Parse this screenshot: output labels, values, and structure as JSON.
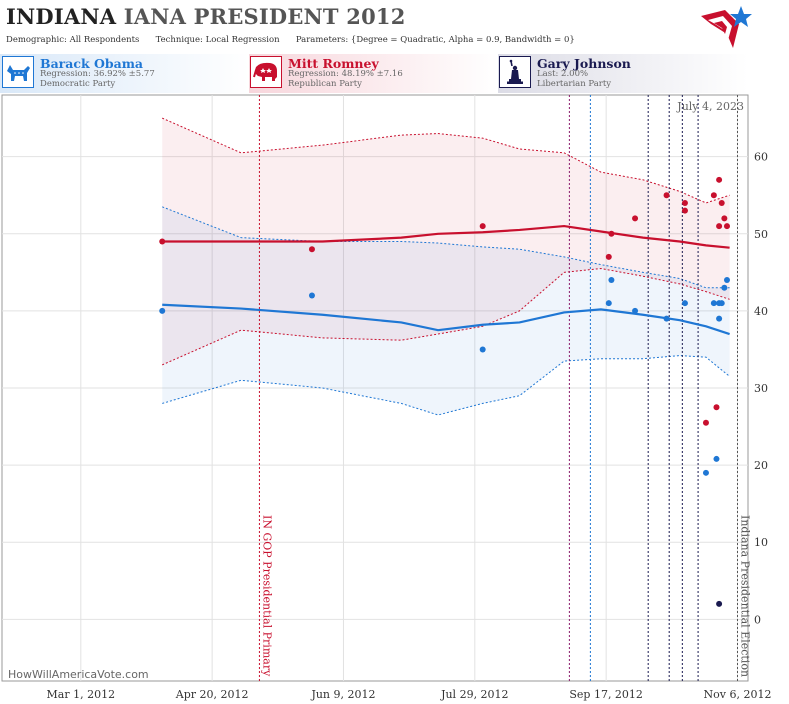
{
  "header": {
    "state": "INDIANA",
    "title_rest": "IANA PRESIDENT 2012",
    "demographic_label": "Demographic:",
    "demographic_value": "All Respondents",
    "technique_label": "Technique:",
    "technique_value": "Local Regression",
    "parameters_label": "Parameters:",
    "parameters_value": "{Degree = Quadratic, Alpha = 0.9, Bandwidth = 0}"
  },
  "candidates": [
    {
      "name": "Barack Obama",
      "line2": "Regression: 36.92% ±5.77",
      "line3": "Democratic Party",
      "color": "#1f77d4",
      "icon": "donkey-icon"
    },
    {
      "name": "Mitt Romney",
      "line2": "Regression: 48.19% ±7.16",
      "line3": "Republican Party",
      "color": "#c8102e",
      "icon": "elephant-icon"
    },
    {
      "name": "Gary Johnson",
      "line2": "Last: 2.00%",
      "line3": "Libertarian Party",
      "color": "#1a1a50",
      "icon": "statue-of-liberty-icon"
    }
  ],
  "watermark": "HowWillAmericaVote.com",
  "chart_data": {
    "type": "scatter",
    "date_label": "July 4, 2023",
    "x_tick_labels": [
      "Mar 1, 2012",
      "Apr 20, 2012",
      "Jun 9, 2012",
      "Jul 29, 2012",
      "Sep 17, 2012",
      "Nov 6, 2012"
    ],
    "x_ticks": [
      "2012-03-01",
      "2012-04-20",
      "2012-06-09",
      "2012-07-29",
      "2012-09-17",
      "2012-11-06"
    ],
    "x_range": [
      "2012-01-31",
      "2012-11-10"
    ],
    "ylim": [
      -8,
      68
    ],
    "y_ticks": [
      0,
      10,
      20,
      30,
      40,
      50,
      60
    ],
    "grid": true,
    "events": [
      {
        "date": "2012-05-08",
        "label": "IN GOP Presidential Primary",
        "color": "#c8102e"
      },
      {
        "date": "2012-11-06",
        "label": "Indiana Presidential Election",
        "color": "#555555"
      }
    ],
    "event_lines": [
      {
        "date": "2012-09-03",
        "color": "#8b1a6b"
      },
      {
        "date": "2012-09-11",
        "color": "#1f77d4"
      },
      {
        "date": "2012-10-03",
        "color": "#1a1a50"
      },
      {
        "date": "2012-10-11",
        "color": "#1a1a50"
      },
      {
        "date": "2012-10-16",
        "color": "#1a1a50"
      },
      {
        "date": "2012-10-22",
        "color": "#1a1a50"
      }
    ],
    "series": [
      {
        "name": "Mitt Romney",
        "color": "#c8102e",
        "points": [
          {
            "x": "2012-04-01",
            "y": 49
          },
          {
            "x": "2012-05-28",
            "y": 48
          },
          {
            "x": "2012-08-01",
            "y": 51
          },
          {
            "x": "2012-09-19",
            "y": 50
          },
          {
            "x": "2012-09-18",
            "y": 47
          },
          {
            "x": "2012-09-28",
            "y": 52
          },
          {
            "x": "2012-10-10",
            "y": 55
          },
          {
            "x": "2012-10-17",
            "y": 54
          },
          {
            "x": "2012-10-17",
            "y": 53
          },
          {
            "x": "2012-10-28",
            "y": 55
          },
          {
            "x": "2012-10-30",
            "y": 57
          },
          {
            "x": "2012-10-31",
            "y": 54
          },
          {
            "x": "2012-10-30",
            "y": 51
          },
          {
            "x": "2012-11-01",
            "y": 52
          },
          {
            "x": "2012-11-02",
            "y": 51
          },
          {
            "x": "2012-10-25",
            "y": 25.5
          },
          {
            "x": "2012-10-29",
            "y": 27.5
          }
        ],
        "trend": [
          {
            "x": "2012-04-01",
            "y": 49,
            "lo": 33,
            "hi": 65
          },
          {
            "x": "2012-05-01",
            "y": 49,
            "lo": 37.5,
            "hi": 60.5
          },
          {
            "x": "2012-06-01",
            "y": 49,
            "lo": 36.5,
            "hi": 61.5
          },
          {
            "x": "2012-07-01",
            "y": 49.5,
            "lo": 36.2,
            "hi": 62.8
          },
          {
            "x": "2012-07-15",
            "y": 50,
            "lo": 37,
            "hi": 63
          },
          {
            "x": "2012-08-01",
            "y": 50.2,
            "lo": 38,
            "hi": 62.4
          },
          {
            "x": "2012-08-15",
            "y": 50.5,
            "lo": 40,
            "hi": 61
          },
          {
            "x": "2012-09-01",
            "y": 51,
            "lo": 45,
            "hi": 60.5
          },
          {
            "x": "2012-09-15",
            "y": 50.3,
            "lo": 45.5,
            "hi": 58
          },
          {
            "x": "2012-10-01",
            "y": 49.5,
            "lo": 44.5,
            "hi": 57
          },
          {
            "x": "2012-10-15",
            "y": 49,
            "lo": 43.5,
            "hi": 55.5
          },
          {
            "x": "2012-10-25",
            "y": 48.5,
            "lo": 42.5,
            "hi": 54
          },
          {
            "x": "2012-11-03",
            "y": 48.2,
            "lo": 41.5,
            "hi": 55
          }
        ]
      },
      {
        "name": "Barack Obama",
        "color": "#1f77d4",
        "points": [
          {
            "x": "2012-04-01",
            "y": 40
          },
          {
            "x": "2012-05-28",
            "y": 42
          },
          {
            "x": "2012-08-01",
            "y": 35
          },
          {
            "x": "2012-09-19",
            "y": 44
          },
          {
            "x": "2012-09-18",
            "y": 41
          },
          {
            "x": "2012-09-28",
            "y": 40
          },
          {
            "x": "2012-10-10",
            "y": 39
          },
          {
            "x": "2012-10-17",
            "y": 41
          },
          {
            "x": "2012-10-28",
            "y": 41
          },
          {
            "x": "2012-10-30",
            "y": 41
          },
          {
            "x": "2012-10-31",
            "y": 41
          },
          {
            "x": "2012-10-30",
            "y": 39
          },
          {
            "x": "2012-11-01",
            "y": 43
          },
          {
            "x": "2012-11-02",
            "y": 44
          },
          {
            "x": "2012-10-25",
            "y": 19
          },
          {
            "x": "2012-10-29",
            "y": 20.8
          }
        ],
        "trend": [
          {
            "x": "2012-04-01",
            "y": 40.8,
            "lo": 28,
            "hi": 53.5
          },
          {
            "x": "2012-05-01",
            "y": 40.3,
            "lo": 31,
            "hi": 49.5
          },
          {
            "x": "2012-06-01",
            "y": 39.5,
            "lo": 30,
            "hi": 49
          },
          {
            "x": "2012-07-01",
            "y": 38.5,
            "lo": 28,
            "hi": 49
          },
          {
            "x": "2012-07-15",
            "y": 37.5,
            "lo": 26.5,
            "hi": 48.8
          },
          {
            "x": "2012-08-01",
            "y": 38.2,
            "lo": 28,
            "hi": 48.3
          },
          {
            "x": "2012-08-15",
            "y": 38.5,
            "lo": 29,
            "hi": 48
          },
          {
            "x": "2012-09-01",
            "y": 39.8,
            "lo": 33.5,
            "hi": 47
          },
          {
            "x": "2012-09-15",
            "y": 40.2,
            "lo": 33.8,
            "hi": 46
          },
          {
            "x": "2012-10-01",
            "y": 39.5,
            "lo": 33.8,
            "hi": 45
          },
          {
            "x": "2012-10-15",
            "y": 38.8,
            "lo": 34.2,
            "hi": 44.2
          },
          {
            "x": "2012-10-25",
            "y": 38,
            "lo": 34,
            "hi": 43
          },
          {
            "x": "2012-11-03",
            "y": 37,
            "lo": 31.5,
            "hi": 43
          }
        ]
      },
      {
        "name": "Gary Johnson",
        "color": "#1a1a50",
        "points": [
          {
            "x": "2012-10-30",
            "y": 2
          }
        ]
      }
    ]
  }
}
